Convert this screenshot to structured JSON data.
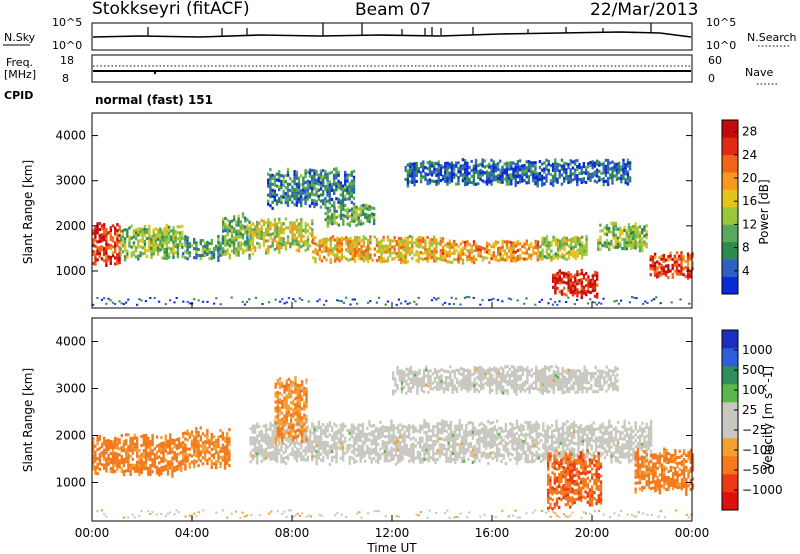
{
  "header": {
    "station": "Stokkseyri (fitACF)",
    "beam": "Beam 07",
    "date": "22/Mar/2013"
  },
  "top_panels": {
    "nsky": {
      "label": "N.Sky",
      "tick_top": "10^5",
      "tick_bottom": "10^0"
    },
    "nsearch": {
      "label": "N.Search",
      "tick_top": "10^5",
      "tick_bottom": "10^0"
    },
    "freq": {
      "label_line1": "Freq.",
      "label_line2": "[MHz]",
      "tick_top": "18",
      "tick_bottom": "8"
    },
    "nave": {
      "label": "Nave",
      "tick_top": "60",
      "tick_bottom": "0"
    },
    "cpid": {
      "label": "CPID",
      "value": "normal (fast) 151"
    }
  },
  "colors": {
    "power_scale": [
      "#0a2ad8",
      "#2f5fc4",
      "#2f8a4e",
      "#5aa85a",
      "#9bc83a",
      "#e6c21c",
      "#f59a1c",
      "#f2641a",
      "#e22a14",
      "#c40a0a"
    ],
    "velocity_scale": [
      "#e01010",
      "#ee3a12",
      "#f4781c",
      "#f4a030",
      "#c8c8c0",
      "#c8c8c0",
      "#5ab84a",
      "#2f8f5a",
      "#2f5fd8",
      "#1a2fbd"
    ],
    "ground_scatter": "#c8c8c0"
  },
  "chart_data": [
    {
      "type": "heatmap",
      "name": "power",
      "ylabel": "Slant Range [km]",
      "yticks": [
        "1000",
        "2000",
        "3000",
        "4000"
      ],
      "ylim": [
        180,
        4500
      ],
      "xlim": [
        0,
        24
      ],
      "colorbar": {
        "label": "Power [dB]",
        "ticks": [
          "4",
          "8",
          "12",
          "16",
          "20",
          "24",
          "28"
        ],
        "range": [
          0,
          30
        ]
      },
      "features": [
        {
          "t": [
            0.0,
            1.1
          ],
          "range": [
            1100,
            2100
          ],
          "value_db": 26
        },
        {
          "t": [
            1.1,
            3.6
          ],
          "range": [
            1250,
            2050
          ],
          "value_db": 12
        },
        {
          "t": [
            3.6,
            5.2
          ],
          "range": [
            1250,
            1800
          ],
          "value_db": 8
        },
        {
          "t": [
            5.2,
            6.3
          ],
          "range": [
            1300,
            2300
          ],
          "value_db": 10
        },
        {
          "t": [
            6.3,
            8.8
          ],
          "range": [
            1400,
            2200
          ],
          "value_db": 15
        },
        {
          "t": [
            8.8,
            14.0
          ],
          "range": [
            1200,
            1800
          ],
          "value_db": 18
        },
        {
          "t": [
            14.0,
            17.8
          ],
          "range": [
            1200,
            1700
          ],
          "value_db": 20
        },
        {
          "t": [
            17.8,
            19.8
          ],
          "range": [
            1250,
            1800
          ],
          "value_db": 14
        },
        {
          "t": [
            18.4,
            20.2
          ],
          "range": [
            430,
            1050
          ],
          "value_db": 28
        },
        {
          "t": [
            20.2,
            22.2
          ],
          "range": [
            1450,
            2100
          ],
          "value_db": 12
        },
        {
          "t": [
            22.3,
            24.0
          ],
          "range": [
            850,
            1450
          ],
          "value_db": 26
        },
        {
          "t": [
            7.0,
            10.5
          ],
          "range": [
            2400,
            3300
          ],
          "value_db": 6
        },
        {
          "t": [
            9.3,
            11.3
          ],
          "range": [
            2000,
            2500
          ],
          "value_db": 10
        },
        {
          "t": [
            12.5,
            21.5
          ],
          "range": [
            2900,
            3500
          ],
          "value_db": 4
        }
      ]
    },
    {
      "type": "heatmap",
      "name": "velocity",
      "ylabel": "Slant Range [km]",
      "yticks": [
        "1000",
        "2000",
        "3000",
        "4000"
      ],
      "ylim": [
        180,
        4500
      ],
      "xlim": [
        0,
        24
      ],
      "xlabel": "Time UT",
      "xticks": [
        "00:00",
        "04:00",
        "08:00",
        "12:00",
        "16:00",
        "20:00",
        "00:00"
      ],
      "colorbar": {
        "label": "Velocity [m s^-1]",
        "ticks": [
          "1000",
          "500",
          "100",
          "25",
          "−25",
          "−100",
          "−500",
          "−1000"
        ]
      },
      "features": [
        {
          "t": [
            0.0,
            3.6
          ],
          "range": [
            1150,
            2050
          ],
          "value_ms": -300
        },
        {
          "t": [
            3.6,
            5.5
          ],
          "range": [
            1300,
            2200
          ],
          "value_ms": -250
        },
        {
          "t": [
            6.3,
            22.4
          ],
          "range": [
            1400,
            2350
          ],
          "value_ms": 0,
          "ground_scatter": true
        },
        {
          "t": [
            7.3,
            8.6
          ],
          "range": [
            1800,
            3300
          ],
          "value_ms": -200
        },
        {
          "t": [
            18.2,
            20.4
          ],
          "range": [
            430,
            1700
          ],
          "value_ms": -400
        },
        {
          "t": [
            21.7,
            24.0
          ],
          "range": [
            750,
            1750
          ],
          "value_ms": -300
        },
        {
          "t": [
            12.0,
            21.0
          ],
          "range": [
            2900,
            3500
          ],
          "value_ms": 0,
          "ground_scatter": true
        }
      ]
    }
  ]
}
